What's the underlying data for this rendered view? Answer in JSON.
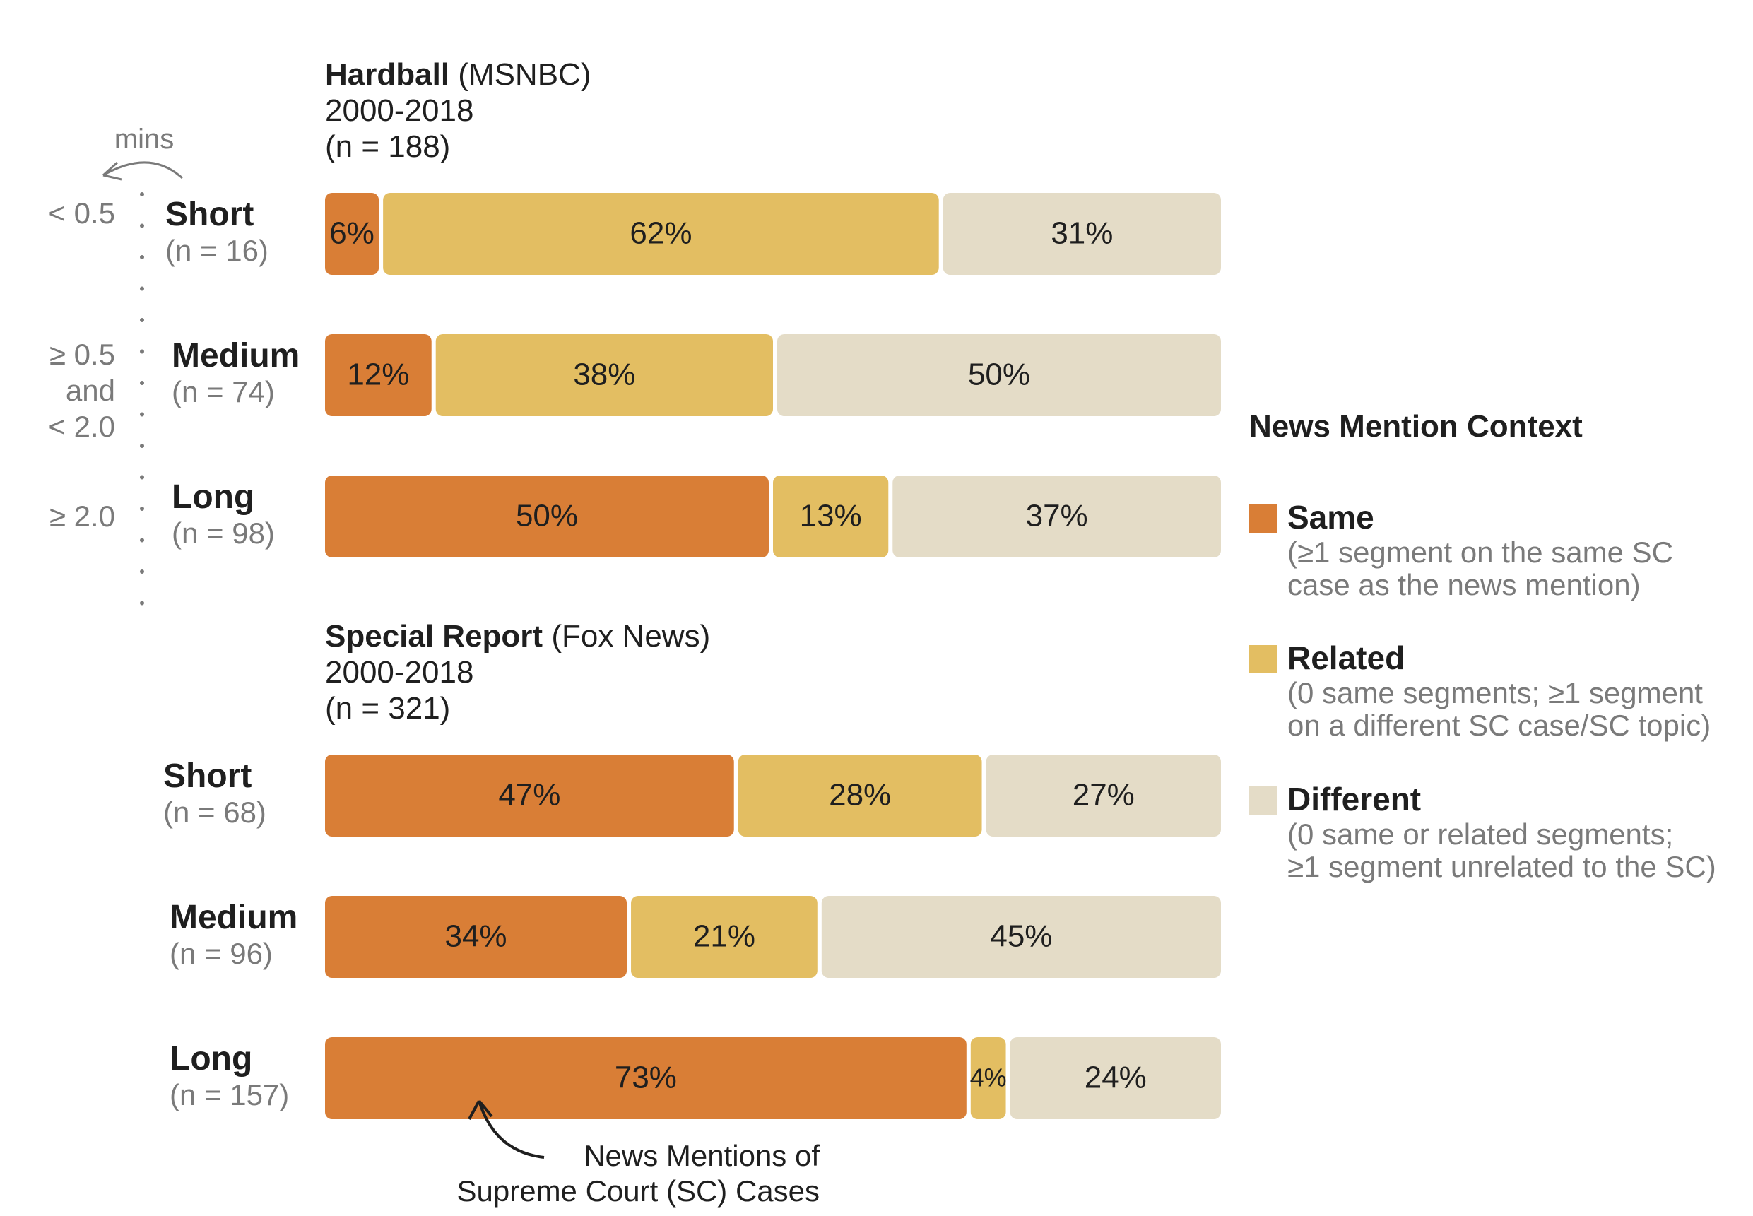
{
  "chart_data": {
    "type": "bar",
    "orientation": "horizontal-stacked",
    "unit": "%",
    "colors": {
      "Same": "#d97e36",
      "Related": "#e3be62",
      "Different": "#e4dcc7"
    },
    "duration_axis": {
      "label": "mins",
      "bins": [
        "< 0.5",
        "≥ 0.5",
        "and",
        "< 2.0",
        "≥ 2.0"
      ]
    },
    "groups": [
      {
        "show": "Hardball",
        "network": "(MSNBC)",
        "period": "2000-2018",
        "n": "(n = 188)",
        "rows": [
          {
            "label": "Short",
            "n": "(n = 16)",
            "values": [
              6,
              62,
              31
            ],
            "value_labels": [
              "6%",
              "62%",
              "31%"
            ]
          },
          {
            "label": "Medium",
            "n": "(n = 74)",
            "values": [
              12,
              38,
              50
            ],
            "value_labels": [
              "12%",
              "38%",
              "50%"
            ]
          },
          {
            "label": "Long",
            "n": "(n = 98)",
            "values": [
              50,
              13,
              37
            ],
            "value_labels": [
              "50%",
              "13%",
              "37%"
            ]
          }
        ]
      },
      {
        "show": "Special Report",
        "network": "(Fox News)",
        "period": "2000-2018",
        "n": "(n = 321)",
        "rows": [
          {
            "label": "Short",
            "n": "(n = 68)",
            "values": [
              47,
              28,
              27
            ],
            "value_labels": [
              "47%",
              "28%",
              "27%"
            ]
          },
          {
            "label": "Medium",
            "n": "(n = 96)",
            "values": [
              34,
              21,
              45
            ],
            "value_labels": [
              "34%",
              "21%",
              "45%"
            ]
          },
          {
            "label": "Long",
            "n": "(n = 157)",
            "values": [
              73,
              4,
              24
            ],
            "value_labels": [
              "73%",
              "4%",
              "24%"
            ]
          }
        ]
      }
    ],
    "legend": {
      "title": "News Mention Context",
      "placement": "right",
      "items": [
        {
          "name": "Same",
          "description": [
            "(≥1 segment on the same SC",
            "case as the news mention)"
          ]
        },
        {
          "name": "Related",
          "description": [
            "(0 same segments; ≥1 segment",
            "on a different SC case/SC topic)"
          ]
        },
        {
          "name": "Different",
          "description": [
            "(0 same or related segments;",
            "≥1 segment unrelated to the SC)"
          ]
        }
      ]
    },
    "annotation": [
      "News Mentions of",
      "Supreme Court (SC) Cases"
    ]
  }
}
